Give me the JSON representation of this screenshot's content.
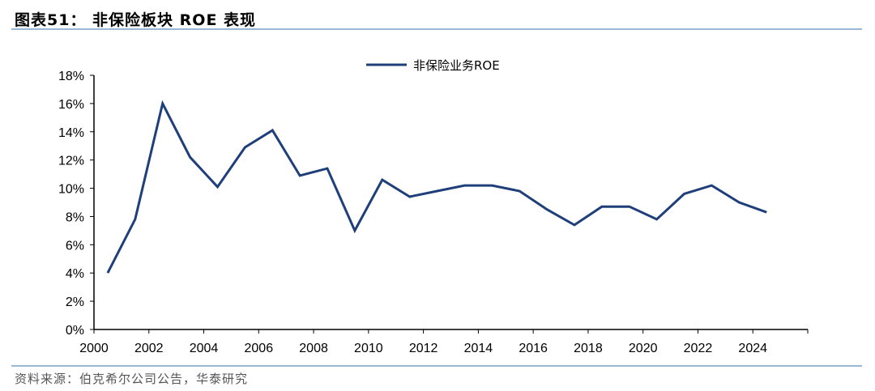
{
  "figure": {
    "title": "图表51：  非保险板块 ROE 表现",
    "source": "资料来源：伯克希尔公司公告，华泰研究"
  },
  "colors": {
    "series": "#1f3f7a",
    "axis": "#000000",
    "rule": "#9bb7d6"
  },
  "chart_data": {
    "type": "line",
    "title": "",
    "xlabel": "",
    "ylabel": "",
    "ylim": [
      0,
      18
    ],
    "y_ticks": [
      "0%",
      "2%",
      "4%",
      "6%",
      "8%",
      "10%",
      "12%",
      "14%",
      "16%",
      "18%"
    ],
    "x_ticks": [
      "2000",
      "2002",
      "2004",
      "2006",
      "2008",
      "2010",
      "2012",
      "2014",
      "2016",
      "2018",
      "2020",
      "2022",
      "2024"
    ],
    "legend_position": "top-center",
    "grid": false,
    "x": [
      2000,
      2001,
      2002,
      2003,
      2004,
      2005,
      2006,
      2007,
      2008,
      2009,
      2010,
      2011,
      2012,
      2013,
      2014,
      2015,
      2016,
      2017,
      2018,
      2019,
      2020,
      2021,
      2022,
      2023,
      2024
    ],
    "series": [
      {
        "name": "非保险业务ROE",
        "values": [
          4.0,
          7.8,
          16.0,
          12.2,
          10.1,
          12.9,
          14.1,
          10.9,
          11.4,
          7.0,
          10.6,
          9.4,
          9.8,
          10.2,
          10.2,
          9.8,
          8.5,
          7.4,
          8.7,
          8.7,
          7.8,
          9.6,
          10.2,
          9.0,
          8.3
        ]
      }
    ]
  }
}
